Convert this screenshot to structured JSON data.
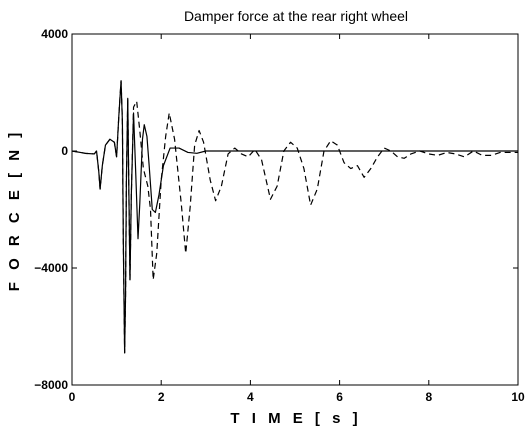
{
  "chart_data": {
    "type": "line",
    "title": "Damper force at the rear right wheel",
    "xlabel": "T I M E   [ s ]",
    "ylabel": "F O R C E   [ N ]",
    "xlim": [
      0,
      10
    ],
    "ylim": [
      -8000,
      4000
    ],
    "xticks": [
      0,
      2,
      4,
      6,
      8,
      10
    ],
    "yticks": [
      -8000,
      -4000,
      0,
      4000
    ],
    "grid": false,
    "legend": "none",
    "series": [
      {
        "style": "solid",
        "color": "#000000",
        "points": [
          [
            0,
            0
          ],
          [
            0.3,
            -80
          ],
          [
            0.5,
            -100
          ],
          [
            0.55,
            0
          ],
          [
            0.6,
            -700
          ],
          [
            0.63,
            -1300
          ],
          [
            0.68,
            -500
          ],
          [
            0.75,
            200
          ],
          [
            0.85,
            400
          ],
          [
            0.95,
            300
          ],
          [
            1.0,
            -200
          ],
          [
            1.05,
            1200
          ],
          [
            1.1,
            2400
          ],
          [
            1.13,
            1000
          ],
          [
            1.15,
            -3000
          ],
          [
            1.18,
            -6900
          ],
          [
            1.2,
            -5000
          ],
          [
            1.22,
            -1000
          ],
          [
            1.25,
            1800
          ],
          [
            1.28,
            -2000
          ],
          [
            1.3,
            -4400
          ],
          [
            1.33,
            -1500
          ],
          [
            1.38,
            1300
          ],
          [
            1.43,
            -800
          ],
          [
            1.48,
            -3000
          ],
          [
            1.52,
            -1800
          ],
          [
            1.58,
            400
          ],
          [
            1.62,
            900
          ],
          [
            1.68,
            500
          ],
          [
            1.73,
            -500
          ],
          [
            1.8,
            -2000
          ],
          [
            1.87,
            -2100
          ],
          [
            1.95,
            -1500
          ],
          [
            2.05,
            -500
          ],
          [
            2.2,
            100
          ],
          [
            2.4,
            100
          ],
          [
            2.6,
            -50
          ],
          [
            2.8,
            -80
          ],
          [
            3.0,
            0
          ],
          [
            4.0,
            0
          ],
          [
            10.0,
            0
          ]
        ]
      },
      {
        "style": "dashed",
        "color": "#000000",
        "points": [
          [
            0,
            0
          ],
          [
            0.3,
            -80
          ],
          [
            0.5,
            -100
          ],
          [
            0.55,
            0
          ],
          [
            0.6,
            -700
          ],
          [
            0.63,
            -1300
          ],
          [
            0.68,
            -500
          ],
          [
            0.75,
            200
          ],
          [
            0.85,
            400
          ],
          [
            0.95,
            300
          ],
          [
            1.0,
            -200
          ],
          [
            1.05,
            1200
          ],
          [
            1.1,
            2400
          ],
          [
            1.13,
            1000
          ],
          [
            1.15,
            -3000
          ],
          [
            1.18,
            -6900
          ],
          [
            1.2,
            -5000
          ],
          [
            1.22,
            -1000
          ],
          [
            1.25,
            1800
          ],
          [
            1.28,
            -2000
          ],
          [
            1.3,
            -4400
          ],
          [
            1.33,
            -1500
          ],
          [
            1.38,
            1500
          ],
          [
            1.45,
            1700
          ],
          [
            1.52,
            700
          ],
          [
            1.6,
            -600
          ],
          [
            1.7,
            -1200
          ],
          [
            1.76,
            -2000
          ],
          [
            1.82,
            -4400
          ],
          [
            1.9,
            -3500
          ],
          [
            2.0,
            -1000
          ],
          [
            2.1,
            500
          ],
          [
            2.18,
            1300
          ],
          [
            2.3,
            400
          ],
          [
            2.45,
            -1800
          ],
          [
            2.55,
            -3500
          ],
          [
            2.65,
            -1900
          ],
          [
            2.75,
            200
          ],
          [
            2.85,
            700
          ],
          [
            2.95,
            300
          ],
          [
            3.1,
            -1000
          ],
          [
            3.22,
            -1700
          ],
          [
            3.35,
            -1200
          ],
          [
            3.5,
            -100
          ],
          [
            3.65,
            100
          ],
          [
            3.8,
            -100
          ],
          [
            3.95,
            -200
          ],
          [
            4.1,
            50
          ],
          [
            4.25,
            -300
          ],
          [
            4.45,
            -1650
          ],
          [
            4.6,
            -1200
          ],
          [
            4.75,
            0
          ],
          [
            4.9,
            300
          ],
          [
            5.05,
            100
          ],
          [
            5.2,
            -600
          ],
          [
            5.35,
            -1850
          ],
          [
            5.5,
            -1300
          ],
          [
            5.65,
            0
          ],
          [
            5.8,
            350
          ],
          [
            5.95,
            200
          ],
          [
            6.1,
            -400
          ],
          [
            6.25,
            -600
          ],
          [
            6.4,
            -500
          ],
          [
            6.55,
            -900
          ],
          [
            6.7,
            -600
          ],
          [
            6.85,
            -200
          ],
          [
            7.0,
            100
          ],
          [
            7.15,
            0
          ],
          [
            7.3,
            -200
          ],
          [
            7.45,
            -250
          ],
          [
            7.6,
            -100
          ],
          [
            7.8,
            0
          ],
          [
            8.0,
            -100
          ],
          [
            8.2,
            -150
          ],
          [
            8.4,
            -50
          ],
          [
            8.6,
            -100
          ],
          [
            8.8,
            -200
          ],
          [
            9.0,
            0
          ],
          [
            9.2,
            -150
          ],
          [
            9.4,
            -150
          ],
          [
            9.6,
            -50
          ],
          [
            9.8,
            -50
          ],
          [
            10.0,
            -50
          ]
        ]
      }
    ]
  }
}
